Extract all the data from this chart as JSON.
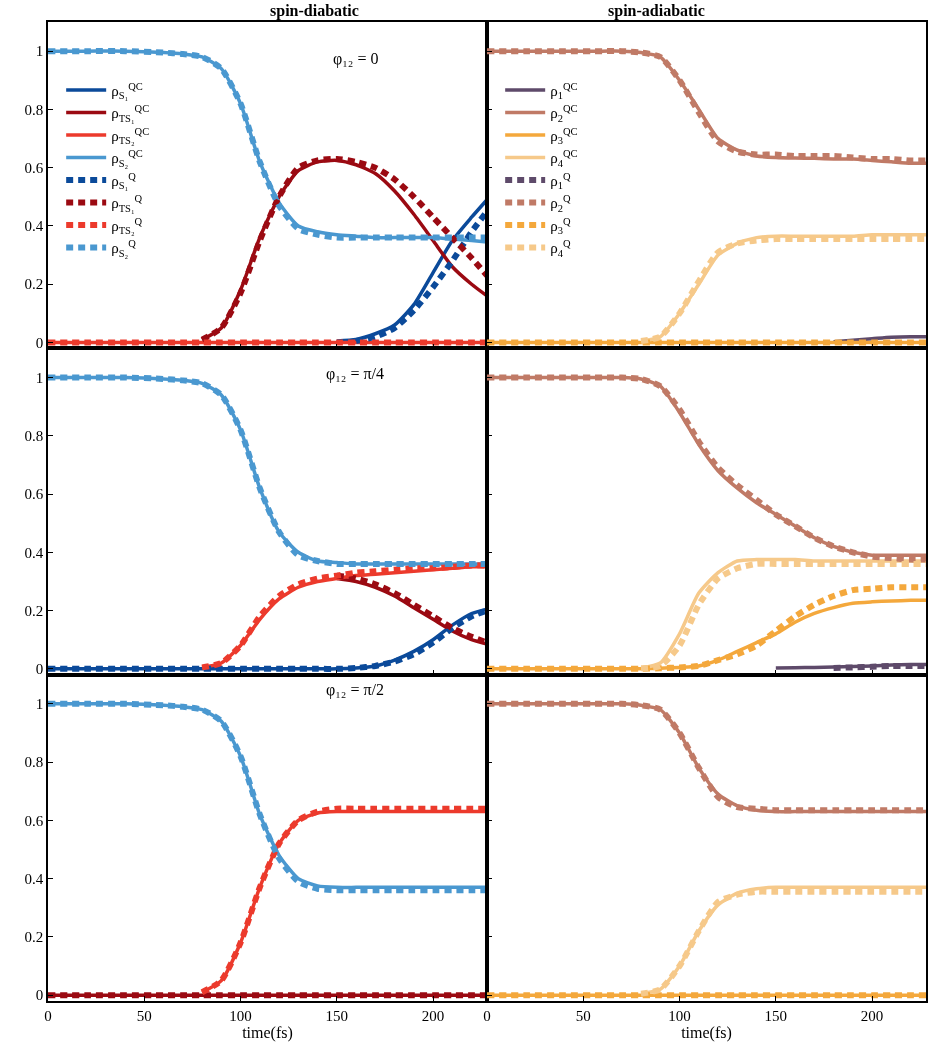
{
  "chart_data": [
    {
      "type": "line",
      "title": "spin-diabatic",
      "annotations": [
        "φ₁₂ = 0"
      ],
      "x": [
        0,
        20,
        40,
        60,
        70,
        80,
        90,
        100,
        110,
        120,
        130,
        140,
        150,
        160,
        170,
        180,
        190,
        200,
        210,
        220,
        228
      ],
      "xlim": [
        0,
        228
      ],
      "xticks": [
        0,
        50,
        100,
        150,
        200
      ],
      "ylim": [
        -0.02,
        1.1
      ],
      "yticks": [
        0,
        0.2,
        0.4,
        0.6,
        0.8,
        1
      ],
      "tick_labels": "y",
      "legend": "left",
      "series": [
        {
          "name": "ρ$_{S₁}$$^{QC}$",
          "color": "#0b4a9a",
          "line_style": "solid",
          "values": [
            null,
            null,
            null,
            null,
            null,
            null,
            null,
            null,
            null,
            null,
            null,
            null,
            0.005,
            0.01,
            0.03,
            0.06,
            0.13,
            0.24,
            0.35,
            0.43,
            0.49
          ]
        },
        {
          "name": "ρ$_{TS₁}$$^{QC}$",
          "color": "#9b0a12",
          "line_style": "solid",
          "values": [
            null,
            null,
            null,
            null,
            null,
            0.01,
            0.05,
            0.18,
            0.36,
            0.5,
            0.59,
            0.62,
            0.625,
            0.61,
            0.58,
            0.52,
            0.44,
            0.35,
            0.26,
            0.2,
            0.16
          ]
        },
        {
          "name": "ρ$_{TS₂}$$^{QC}$",
          "color": "#ec3a2c",
          "line_style": "solid",
          "values": [
            0,
            0,
            0,
            0,
            0,
            0,
            0,
            0,
            0,
            0,
            0,
            0,
            0,
            0,
            0,
            0,
            0,
            0,
            0,
            0,
            0
          ]
        },
        {
          "name": "ρ$_{S₂}$$^{QC}$",
          "color": "#4a98d0",
          "line_style": "solid",
          "values": [
            1,
            1,
            1,
            0.995,
            0.99,
            0.98,
            0.94,
            0.82,
            0.62,
            0.48,
            0.4,
            0.38,
            0.37,
            0.365,
            0.36,
            0.36,
            0.36,
            0.36,
            0.355,
            0.35,
            0.345
          ]
        },
        {
          "name": "ρ$_{S₁}$$^{Q}$",
          "color": "#0b4a9a",
          "line_style": "dashed",
          "values": [
            null,
            null,
            null,
            null,
            null,
            null,
            null,
            null,
            null,
            null,
            null,
            null,
            null,
            0.005,
            0.02,
            0.05,
            0.11,
            0.19,
            0.28,
            0.38,
            0.45
          ]
        },
        {
          "name": "ρ$_{TS₁}$$^{Q}$",
          "color": "#9b0a12",
          "line_style": "dashed",
          "values": [
            null,
            null,
            null,
            null,
            null,
            0.01,
            0.05,
            0.17,
            0.35,
            0.5,
            0.6,
            0.625,
            0.63,
            0.62,
            0.6,
            0.56,
            0.5,
            0.43,
            0.36,
            0.29,
            0.23
          ]
        },
        {
          "name": "ρ$_{TS₂}$$^{Q}$",
          "color": "#ec3a2c",
          "line_style": "dashed",
          "values": [
            0,
            0,
            0,
            0,
            0,
            0,
            0,
            0,
            0,
            0,
            0,
            0,
            0,
            0,
            0,
            0,
            0,
            0,
            0,
            0,
            0
          ]
        },
        {
          "name": "ρ$_{S₂}$$^{Q}$",
          "color": "#4a98d0",
          "line_style": "dashed",
          "values": [
            1,
            1,
            1,
            0.995,
            0.99,
            0.98,
            0.94,
            0.82,
            0.62,
            0.47,
            0.39,
            0.37,
            0.36,
            0.36,
            0.36,
            0.36,
            0.36,
            0.36,
            0.36,
            0.36,
            0.36
          ]
        }
      ]
    },
    {
      "type": "line",
      "title": "spin-adiabatic",
      "x": [
        0,
        20,
        40,
        60,
        70,
        80,
        90,
        100,
        110,
        120,
        130,
        140,
        150,
        160,
        170,
        180,
        190,
        200,
        210,
        220,
        228
      ],
      "xlim": [
        0,
        228
      ],
      "xticks": [
        0,
        50,
        100,
        150,
        200
      ],
      "ylim": [
        -0.02,
        1.1
      ],
      "yticks": [
        0,
        0.2,
        0.4,
        0.6,
        0.8,
        1
      ],
      "tick_labels": false,
      "legend": "left",
      "series": [
        {
          "name": "ρ$_{1}$$^{QC}$",
          "color": "#5e4a6a",
          "line_style": "solid",
          "values": [
            null,
            null,
            null,
            null,
            null,
            null,
            null,
            null,
            null,
            null,
            null,
            null,
            null,
            null,
            null,
            0.003,
            0.008,
            0.013,
            0.018,
            0.02,
            0.02
          ]
        },
        {
          "name": "ρ$_{2}$$^{QC}$",
          "color": "#c07a66",
          "line_style": "solid",
          "values": [
            1,
            1,
            1,
            1,
            1,
            0.995,
            0.98,
            0.9,
            0.8,
            0.7,
            0.66,
            0.64,
            0.635,
            0.633,
            0.632,
            0.63,
            0.63,
            0.625,
            0.62,
            0.615,
            0.615
          ]
        },
        {
          "name": "ρ$_{3}$$^{QC}$",
          "color": "#f4a83c",
          "line_style": "solid",
          "values": [
            0,
            0,
            0,
            0,
            0,
            0,
            0,
            0,
            0,
            0,
            0,
            0,
            0,
            0,
            0,
            0,
            0,
            0,
            0,
            0,
            0
          ]
        },
        {
          "name": "ρ$_{4}$$^{QC}$",
          "color": "#f6c98a",
          "line_style": "solid",
          "values": [
            null,
            null,
            null,
            null,
            null,
            0.005,
            0.02,
            0.1,
            0.2,
            0.3,
            0.34,
            0.36,
            0.365,
            0.365,
            0.365,
            0.365,
            0.365,
            0.37,
            0.37,
            0.37,
            0.37
          ]
        },
        {
          "name": "ρ$_{1}$$^{Q}$",
          "color": "#5e4a6a",
          "line_style": "dashed",
          "values": [
            null,
            null,
            null,
            null,
            null,
            null,
            null,
            null,
            null,
            null,
            null,
            null,
            null,
            null,
            null,
            null,
            null,
            null,
            null,
            null,
            null
          ]
        },
        {
          "name": "ρ$_{2}$$^{Q}$",
          "color": "#c07a66",
          "line_style": "dashed",
          "values": [
            1,
            1,
            1,
            1,
            1,
            0.995,
            0.98,
            0.9,
            0.79,
            0.69,
            0.655,
            0.645,
            0.645,
            0.64,
            0.64,
            0.64,
            0.635,
            0.63,
            0.63,
            0.625,
            0.625
          ]
        },
        {
          "name": "ρ$_{3}$$^{Q}$",
          "color": "#f4a83c",
          "line_style": "dashed",
          "values": [
            0,
            0,
            0,
            0,
            0,
            0,
            0,
            0,
            0,
            0,
            0,
            0,
            0,
            0,
            0,
            0,
            0,
            0,
            0,
            0,
            0
          ]
        },
        {
          "name": "ρ$_{4}$$^{Q}$",
          "color": "#f6c98a",
          "line_style": "dashed",
          "values": [
            null,
            null,
            null,
            null,
            null,
            0.005,
            0.02,
            0.1,
            0.21,
            0.31,
            0.34,
            0.35,
            0.355,
            0.355,
            0.355,
            0.355,
            0.355,
            0.355,
            0.355,
            0.355,
            0.355
          ]
        }
      ]
    },
    {
      "type": "line",
      "annotations": [
        "φ₁₂ = π/4"
      ],
      "x": [
        0,
        20,
        40,
        60,
        70,
        80,
        90,
        100,
        110,
        120,
        130,
        140,
        150,
        160,
        170,
        180,
        190,
        200,
        210,
        220,
        228
      ],
      "xlim": [
        0,
        228
      ],
      "xticks": [
        0,
        50,
        100,
        150,
        200
      ],
      "ylim": [
        -0.02,
        1.1
      ],
      "yticks": [
        0,
        0.2,
        0.4,
        0.6,
        0.8,
        1
      ],
      "tick_labels": "y",
      "series": [
        {
          "color": "#0b4a9a",
          "line_style": "solid",
          "values": [
            0,
            0,
            0,
            0,
            0,
            0,
            0,
            0,
            0,
            0,
            0,
            0,
            0,
            0.003,
            0.01,
            0.03,
            0.06,
            0.1,
            0.15,
            0.19,
            0.205
          ]
        },
        {
          "color": "#9b0a12",
          "line_style": "solid",
          "values": [
            null,
            null,
            null,
            null,
            null,
            null,
            null,
            null,
            null,
            null,
            null,
            null,
            0.31,
            0.3,
            0.28,
            0.25,
            0.21,
            0.17,
            0.13,
            0.1,
            0.085
          ]
        },
        {
          "color": "#ec3a2c",
          "line_style": "solid",
          "values": [
            null,
            null,
            null,
            null,
            null,
            0.005,
            0.02,
            0.08,
            0.17,
            0.24,
            0.28,
            0.3,
            0.31,
            0.32,
            0.325,
            0.33,
            0.335,
            0.34,
            0.345,
            0.35,
            0.35
          ]
        },
        {
          "color": "#4a98d0",
          "line_style": "solid",
          "values": [
            1,
            1,
            1,
            0.995,
            0.99,
            0.98,
            0.94,
            0.82,
            0.62,
            0.47,
            0.4,
            0.37,
            0.365,
            0.36,
            0.36,
            0.36,
            0.36,
            0.36,
            0.36,
            0.36,
            0.36
          ]
        },
        {
          "color": "#0b4a9a",
          "line_style": "dashed",
          "values": [
            0,
            0,
            0,
            0,
            0,
            0,
            0,
            0,
            0,
            0,
            0,
            0,
            0,
            0.003,
            0.01,
            0.025,
            0.05,
            0.09,
            0.14,
            0.18,
            0.2
          ]
        },
        {
          "color": "#9b0a12",
          "line_style": "dashed",
          "values": [
            null,
            null,
            null,
            null,
            null,
            null,
            null,
            null,
            null,
            null,
            null,
            null,
            0.32,
            0.31,
            0.29,
            0.26,
            0.22,
            0.18,
            0.14,
            0.11,
            0.09
          ]
        },
        {
          "color": "#ec3a2c",
          "line_style": "dashed",
          "values": [
            null,
            null,
            null,
            null,
            null,
            0.005,
            0.02,
            0.08,
            0.18,
            0.25,
            0.29,
            0.31,
            0.32,
            0.33,
            0.335,
            0.34,
            0.345,
            0.345,
            0.35,
            0.355,
            0.355
          ]
        },
        {
          "color": "#4a98d0",
          "line_style": "dashed",
          "values": [
            1,
            1,
            1,
            0.995,
            0.99,
            0.98,
            0.94,
            0.82,
            0.62,
            0.47,
            0.39,
            0.37,
            0.36,
            0.36,
            0.36,
            0.36,
            0.36,
            0.36,
            0.36,
            0.36,
            0.36
          ]
        }
      ]
    },
    {
      "type": "line",
      "x": [
        0,
        20,
        40,
        60,
        70,
        80,
        90,
        100,
        110,
        120,
        130,
        140,
        150,
        160,
        170,
        180,
        190,
        200,
        210,
        220,
        228
      ],
      "xlim": [
        0,
        228
      ],
      "xticks": [
        0,
        50,
        100,
        150,
        200
      ],
      "ylim": [
        -0.02,
        1.1
      ],
      "yticks": [
        0,
        0.2,
        0.4,
        0.6,
        0.8,
        1
      ],
      "tick_labels": false,
      "series": [
        {
          "color": "#5e4a6a",
          "line_style": "solid",
          "values": [
            null,
            null,
            null,
            null,
            null,
            null,
            null,
            null,
            null,
            null,
            null,
            null,
            0.003,
            0.004,
            0.005,
            0.006,
            0.008,
            0.01,
            0.013,
            0.015,
            0.015
          ]
        },
        {
          "color": "#c07a66",
          "line_style": "solid",
          "values": [
            1,
            1,
            1,
            1,
            1,
            0.995,
            0.97,
            0.88,
            0.77,
            0.68,
            0.62,
            0.57,
            0.53,
            0.49,
            0.45,
            0.42,
            0.4,
            0.39,
            0.39,
            0.39,
            0.39
          ]
        },
        {
          "color": "#f4a83c",
          "line_style": "solid",
          "values": [
            0,
            0,
            0,
            0,
            0,
            0,
            0.002,
            0.005,
            0.01,
            0.03,
            0.06,
            0.09,
            0.12,
            0.16,
            0.19,
            0.21,
            0.225,
            0.23,
            0.233,
            0.235,
            0.235
          ]
        },
        {
          "color": "#f6c98a",
          "line_style": "solid",
          "values": [
            null,
            null,
            null,
            null,
            null,
            0.003,
            0.02,
            0.12,
            0.26,
            0.33,
            0.37,
            0.375,
            0.375,
            0.375,
            0.37,
            0.37,
            0.37,
            0.37,
            0.37,
            0.37,
            0.37
          ]
        },
        {
          "color": "#5e4a6a",
          "line_style": "dashed",
          "values": [
            null,
            null,
            null,
            null,
            null,
            null,
            null,
            null,
            null,
            null,
            null,
            null,
            null,
            null,
            null,
            0.003,
            0.005,
            0.007,
            0.01,
            0.01,
            0.01
          ]
        },
        {
          "color": "#c07a66",
          "line_style": "dashed",
          "values": [
            1,
            1,
            1,
            1,
            1,
            0.995,
            0.97,
            0.89,
            0.78,
            0.69,
            0.63,
            0.58,
            0.53,
            0.49,
            0.45,
            0.42,
            0.4,
            0.385,
            0.38,
            0.375,
            0.375
          ]
        },
        {
          "color": "#f4a83c",
          "line_style": "dashed",
          "values": [
            0,
            0,
            0,
            0,
            0,
            0,
            0.002,
            0.005,
            0.01,
            0.03,
            0.05,
            0.08,
            0.13,
            0.18,
            0.22,
            0.25,
            0.27,
            0.275,
            0.28,
            0.28,
            0.28
          ]
        },
        {
          "color": "#f6c98a",
          "line_style": "dashed",
          "values": [
            null,
            null,
            null,
            null,
            null,
            0.002,
            0.01,
            0.08,
            0.22,
            0.31,
            0.345,
            0.36,
            0.36,
            0.36,
            0.36,
            0.36,
            0.36,
            0.36,
            0.36,
            0.36,
            0.36
          ]
        }
      ]
    },
    {
      "type": "line",
      "annotations": [
        "φ₁₂ = π/2"
      ],
      "xlabel": "time(fs)",
      "x": [
        0,
        20,
        40,
        60,
        70,
        80,
        90,
        100,
        110,
        120,
        130,
        140,
        150,
        160,
        170,
        180,
        190,
        200,
        210,
        220,
        228
      ],
      "xlim": [
        0,
        228
      ],
      "xticks": [
        0,
        50,
        100,
        150,
        200
      ],
      "ylim": [
        -0.02,
        1.1
      ],
      "yticks": [
        0,
        0.2,
        0.4,
        0.6,
        0.8,
        1
      ],
      "series": [
        {
          "color": "#0b4a9a",
          "line_style": "solid",
          "values": [
            null,
            null,
            null,
            null,
            null,
            null,
            null,
            null,
            null,
            null,
            null,
            null,
            null,
            null,
            null,
            null,
            null,
            null,
            null,
            null,
            null
          ]
        },
        {
          "color": "#9b0a12",
          "line_style": "solid",
          "values": [
            0,
            0,
            0,
            0,
            0,
            0,
            0,
            0,
            0,
            0,
            0,
            0,
            0,
            0,
            0,
            0,
            0,
            0,
            0,
            0,
            0
          ]
        },
        {
          "color": "#ec3a2c",
          "line_style": "solid",
          "values": [
            null,
            null,
            null,
            null,
            null,
            0.01,
            0.05,
            0.18,
            0.37,
            0.52,
            0.6,
            0.625,
            0.63,
            0.63,
            0.63,
            0.63,
            0.63,
            0.63,
            0.63,
            0.63,
            0.63
          ]
        },
        {
          "color": "#4a98d0",
          "line_style": "solid",
          "values": [
            1,
            1,
            1,
            0.995,
            0.99,
            0.98,
            0.94,
            0.82,
            0.62,
            0.48,
            0.4,
            0.375,
            0.37,
            0.37,
            0.37,
            0.37,
            0.37,
            0.37,
            0.37,
            0.37,
            0.37
          ]
        },
        {
          "color": "#0b4a9a",
          "line_style": "dashed",
          "values": [
            null,
            null,
            null,
            null,
            null,
            null,
            null,
            null,
            null,
            null,
            null,
            null,
            null,
            null,
            null,
            null,
            null,
            null,
            null,
            null,
            null
          ]
        },
        {
          "color": "#9b0a12",
          "line_style": "dashed",
          "values": [
            0,
            0,
            0,
            0,
            0,
            0,
            0,
            0,
            0,
            0,
            0,
            0,
            0,
            0,
            0,
            0,
            0,
            0,
            0,
            0,
            0
          ]
        },
        {
          "color": "#ec3a2c",
          "line_style": "dashed",
          "values": [
            null,
            null,
            null,
            null,
            null,
            0.01,
            0.05,
            0.18,
            0.37,
            0.52,
            0.6,
            0.63,
            0.64,
            0.64,
            0.64,
            0.64,
            0.64,
            0.64,
            0.64,
            0.64,
            0.64
          ]
        },
        {
          "color": "#4a98d0",
          "line_style": "dashed",
          "values": [
            1,
            1,
            1,
            0.995,
            0.99,
            0.98,
            0.94,
            0.82,
            0.62,
            0.47,
            0.39,
            0.365,
            0.36,
            0.36,
            0.36,
            0.36,
            0.36,
            0.36,
            0.36,
            0.36,
            0.36
          ]
        }
      ]
    },
    {
      "type": "line",
      "xlabel": "time(fs)",
      "x": [
        0,
        20,
        40,
        60,
        70,
        80,
        90,
        100,
        110,
        120,
        130,
        140,
        150,
        160,
        170,
        180,
        190,
        200,
        210,
        220,
        228
      ],
      "xlim": [
        0,
        228
      ],
      "xticks": [
        0,
        50,
        100,
        150,
        200
      ],
      "ylim": [
        -0.02,
        1.1
      ],
      "yticks": [
        0,
        0.2,
        0.4,
        0.6,
        0.8,
        1
      ],
      "tick_labels": "x",
      "series": [
        {
          "color": "#5e4a6a",
          "line_style": "solid",
          "values": [
            null,
            null,
            null,
            null,
            null,
            null,
            null,
            null,
            null,
            null,
            null,
            null,
            null,
            null,
            null,
            null,
            null,
            null,
            null,
            null,
            null
          ]
        },
        {
          "color": "#c07a66",
          "line_style": "solid",
          "values": [
            1,
            1,
            1,
            1,
            1,
            0.995,
            0.98,
            0.9,
            0.78,
            0.69,
            0.65,
            0.635,
            0.63,
            0.63,
            0.63,
            0.63,
            0.63,
            0.63,
            0.63,
            0.63,
            0.63
          ]
        },
        {
          "color": "#f4a83c",
          "line_style": "solid",
          "values": [
            0,
            0,
            0,
            0,
            0,
            0,
            0,
            0,
            0,
            0,
            0,
            0,
            0,
            0,
            0,
            0,
            0,
            0,
            0,
            0,
            0
          ]
        },
        {
          "color": "#f6c98a",
          "line_style": "solid",
          "values": [
            null,
            null,
            null,
            null,
            null,
            0.005,
            0.02,
            0.1,
            0.22,
            0.31,
            0.35,
            0.365,
            0.37,
            0.37,
            0.37,
            0.37,
            0.37,
            0.37,
            0.37,
            0.37,
            0.37
          ]
        },
        {
          "color": "#5e4a6a",
          "line_style": "dashed",
          "values": [
            null,
            null,
            null,
            null,
            null,
            null,
            null,
            null,
            null,
            null,
            null,
            null,
            null,
            null,
            null,
            null,
            null,
            null,
            null,
            null,
            null
          ]
        },
        {
          "color": "#c07a66",
          "line_style": "dashed",
          "values": [
            1,
            1,
            1,
            1,
            1,
            0.995,
            0.98,
            0.9,
            0.78,
            0.68,
            0.645,
            0.64,
            0.635,
            0.635,
            0.635,
            0.635,
            0.635,
            0.635,
            0.635,
            0.635,
            0.635
          ]
        },
        {
          "color": "#f4a83c",
          "line_style": "dashed",
          "values": [
            0,
            0,
            0,
            0,
            0,
            0,
            0,
            0,
            0,
            0,
            0,
            0,
            0,
            0,
            0,
            0,
            0,
            0,
            0,
            0,
            0
          ]
        },
        {
          "color": "#f6c98a",
          "line_style": "dashed",
          "values": [
            null,
            null,
            null,
            null,
            null,
            0.005,
            0.02,
            0.1,
            0.22,
            0.32,
            0.345,
            0.355,
            0.355,
            0.355,
            0.355,
            0.355,
            0.355,
            0.355,
            0.355,
            0.355,
            0.355
          ]
        }
      ]
    }
  ]
}
